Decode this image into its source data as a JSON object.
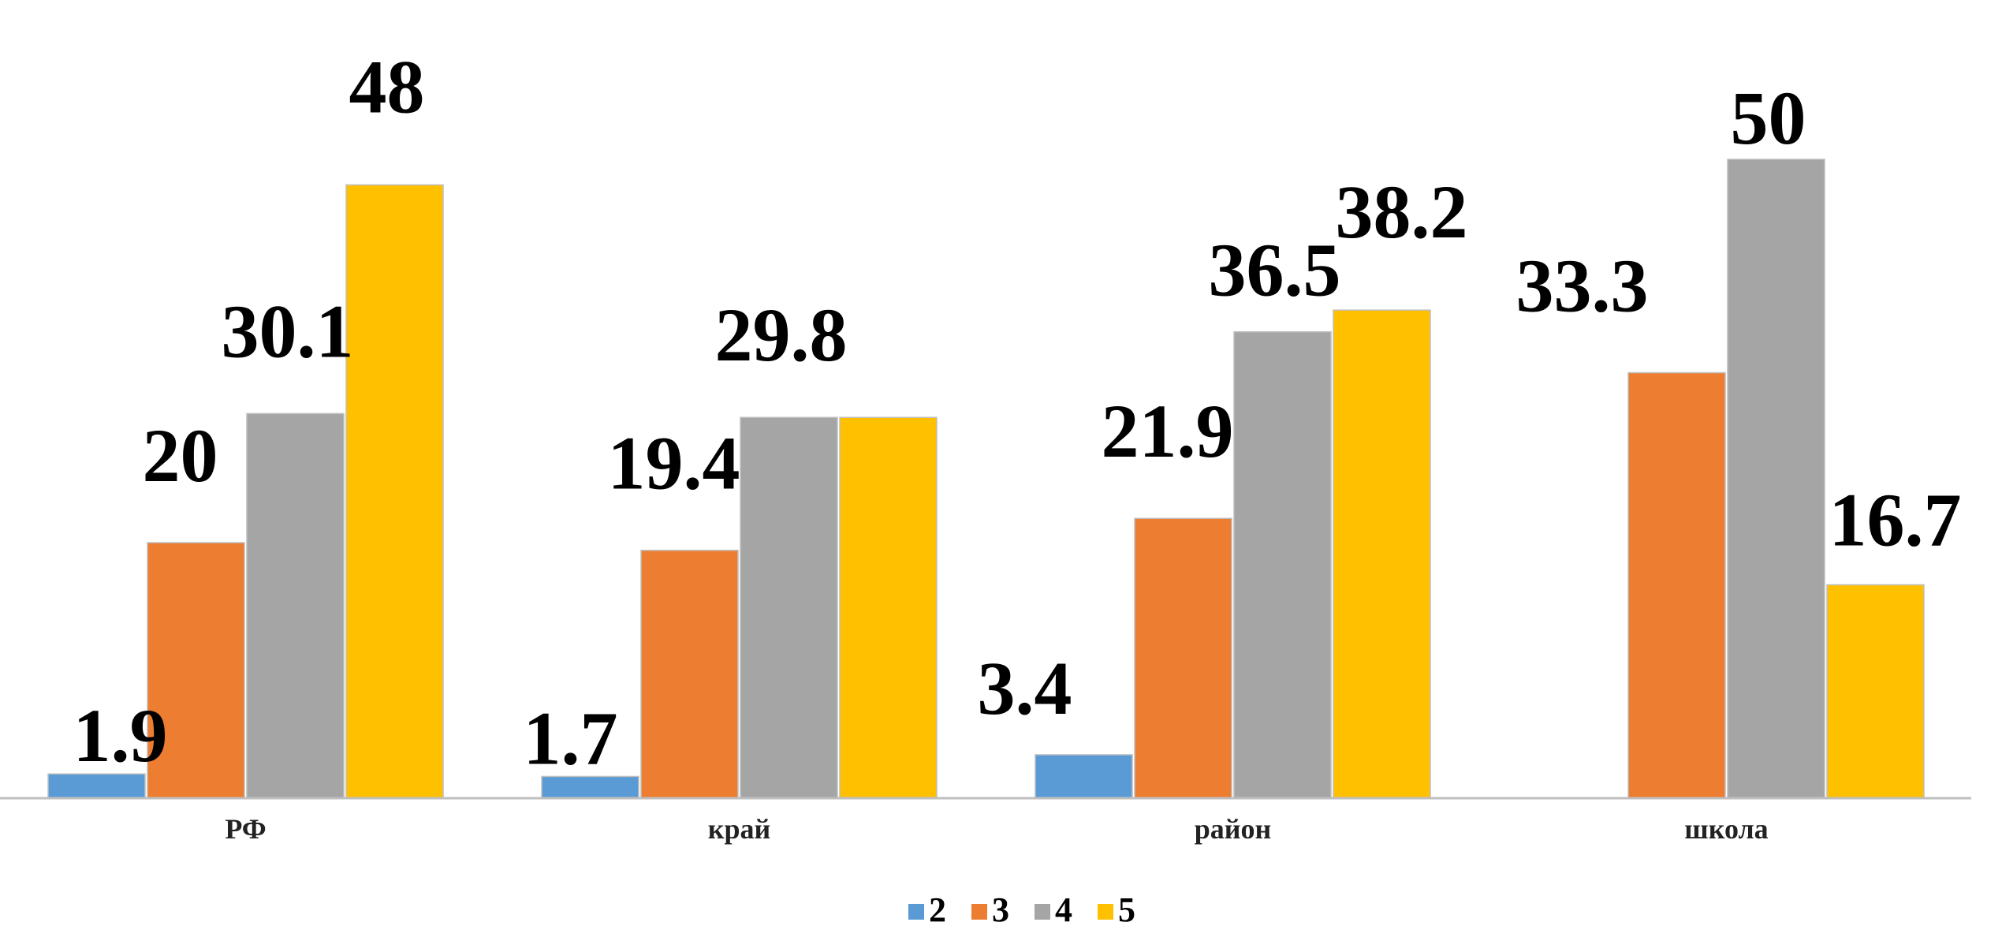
{
  "chart_data": {
    "type": "bar",
    "title": "",
    "xlabel": "",
    "ylabel": "",
    "categories": [
      "РФ",
      "край",
      "район",
      "школа"
    ],
    "series": [
      {
        "name": "2",
        "color": "#5b9bd5",
        "values": [
          1.9,
          1.7,
          3.4,
          null
        ]
      },
      {
        "name": "3",
        "color": "#ed7d31",
        "values": [
          20,
          19.4,
          21.9,
          33.3
        ]
      },
      {
        "name": "4",
        "color": "#a5a5a5",
        "values": [
          30.1,
          29.8,
          36.5,
          50
        ]
      },
      {
        "name": "5",
        "color": "#ffc000",
        "values": [
          48,
          29.8,
          38.2,
          16.7
        ]
      }
    ],
    "data_labels": [
      [
        "1.9",
        "20",
        "30.1",
        "48"
      ],
      [
        "1.7",
        "19.4",
        "29.8",
        ""
      ],
      [
        "3.4",
        "21.9",
        "36.5",
        "38.2"
      ],
      [
        "",
        "33.3",
        "50",
        "16.7"
      ]
    ],
    "ylim": [
      0,
      55
    ],
    "grid": false,
    "legend": "bottom"
  }
}
